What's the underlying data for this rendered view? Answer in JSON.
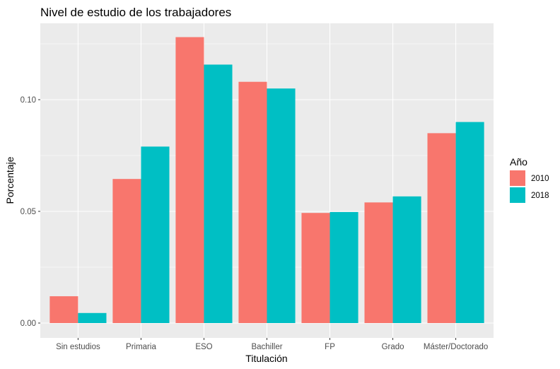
{
  "chart_data": {
    "type": "bar",
    "title": "Nivel de estudio de los trabajadores",
    "xlabel": "Titulación",
    "ylabel": "Porcentaje",
    "categories": [
      "Sin estudios",
      "Primaria",
      "ESO",
      "Bachiller",
      "FP",
      "Grado",
      "Máster/Doctorado"
    ],
    "series": [
      {
        "name": "2010",
        "color": "#F8766D",
        "values": [
          0.012,
          0.0645,
          0.128,
          0.108,
          0.0493,
          0.054,
          0.085
        ]
      },
      {
        "name": "2018",
        "color": "#00BFC4",
        "values": [
          0.0045,
          0.079,
          0.1157,
          0.105,
          0.0497,
          0.0567,
          0.09
        ]
      }
    ],
    "ylim": [
      0,
      0.135
    ],
    "yticks": [
      0,
      0.05,
      0.1
    ],
    "ytick_labels": [
      "0.00",
      "0.05",
      "0.10"
    ],
    "grid": true,
    "panel_background": "#EBEBEB",
    "legend": {
      "title": "Año",
      "position": "right"
    }
  }
}
